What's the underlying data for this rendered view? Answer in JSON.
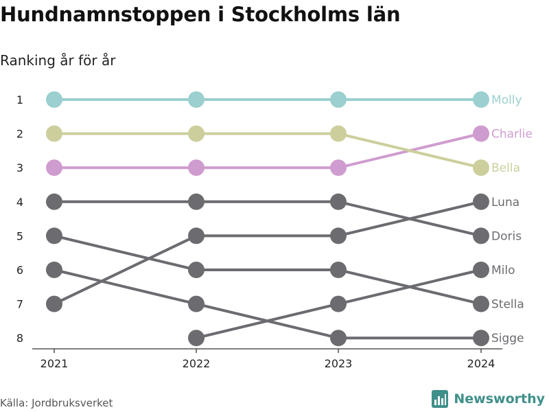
{
  "title": "Hundnamnstoppen i Stockholms län",
  "subtitle": "Ranking år för år",
  "source": "Källa: Jordbruksverket",
  "brand": {
    "name": "Newsworthy",
    "icon": "bar-chart-logo-icon",
    "color": "#3f8f8a"
  },
  "chart_data": {
    "type": "line",
    "kind": "bump-chart",
    "x": [
      "2021",
      "2022",
      "2023",
      "2024"
    ],
    "y_ticks": [
      "1",
      "2",
      "3",
      "4",
      "5",
      "6",
      "7",
      "8"
    ],
    "y_reversed": true,
    "ylim": [
      1,
      8
    ],
    "grid": false,
    "series": [
      {
        "name": "Molly",
        "values": [
          1,
          1,
          1,
          1
        ],
        "color": "#9ccfcf"
      },
      {
        "name": "Bella",
        "values": [
          2,
          2,
          2,
          3
        ],
        "color": "#cccf9c"
      },
      {
        "name": "Charlie",
        "values": [
          3,
          3,
          3,
          2
        ],
        "color": "#cf9ccf"
      },
      {
        "name": "Doris",
        "values": [
          4,
          4,
          4,
          5
        ],
        "color": "#6b6b70"
      },
      {
        "name": "Luna",
        "values": [
          7,
          5,
          5,
          4
        ],
        "color": "#6b6b70"
      },
      {
        "name": "Stella",
        "values": [
          5,
          6,
          6,
          7
        ],
        "color": "#6b6b70"
      },
      {
        "name": "Sigge",
        "values": [
          6,
          7,
          8,
          8
        ],
        "color": "#6b6b70"
      },
      {
        "name": "Milo",
        "values": [
          null,
          8,
          7,
          6
        ],
        "color": "#6b6b70"
      }
    ]
  }
}
